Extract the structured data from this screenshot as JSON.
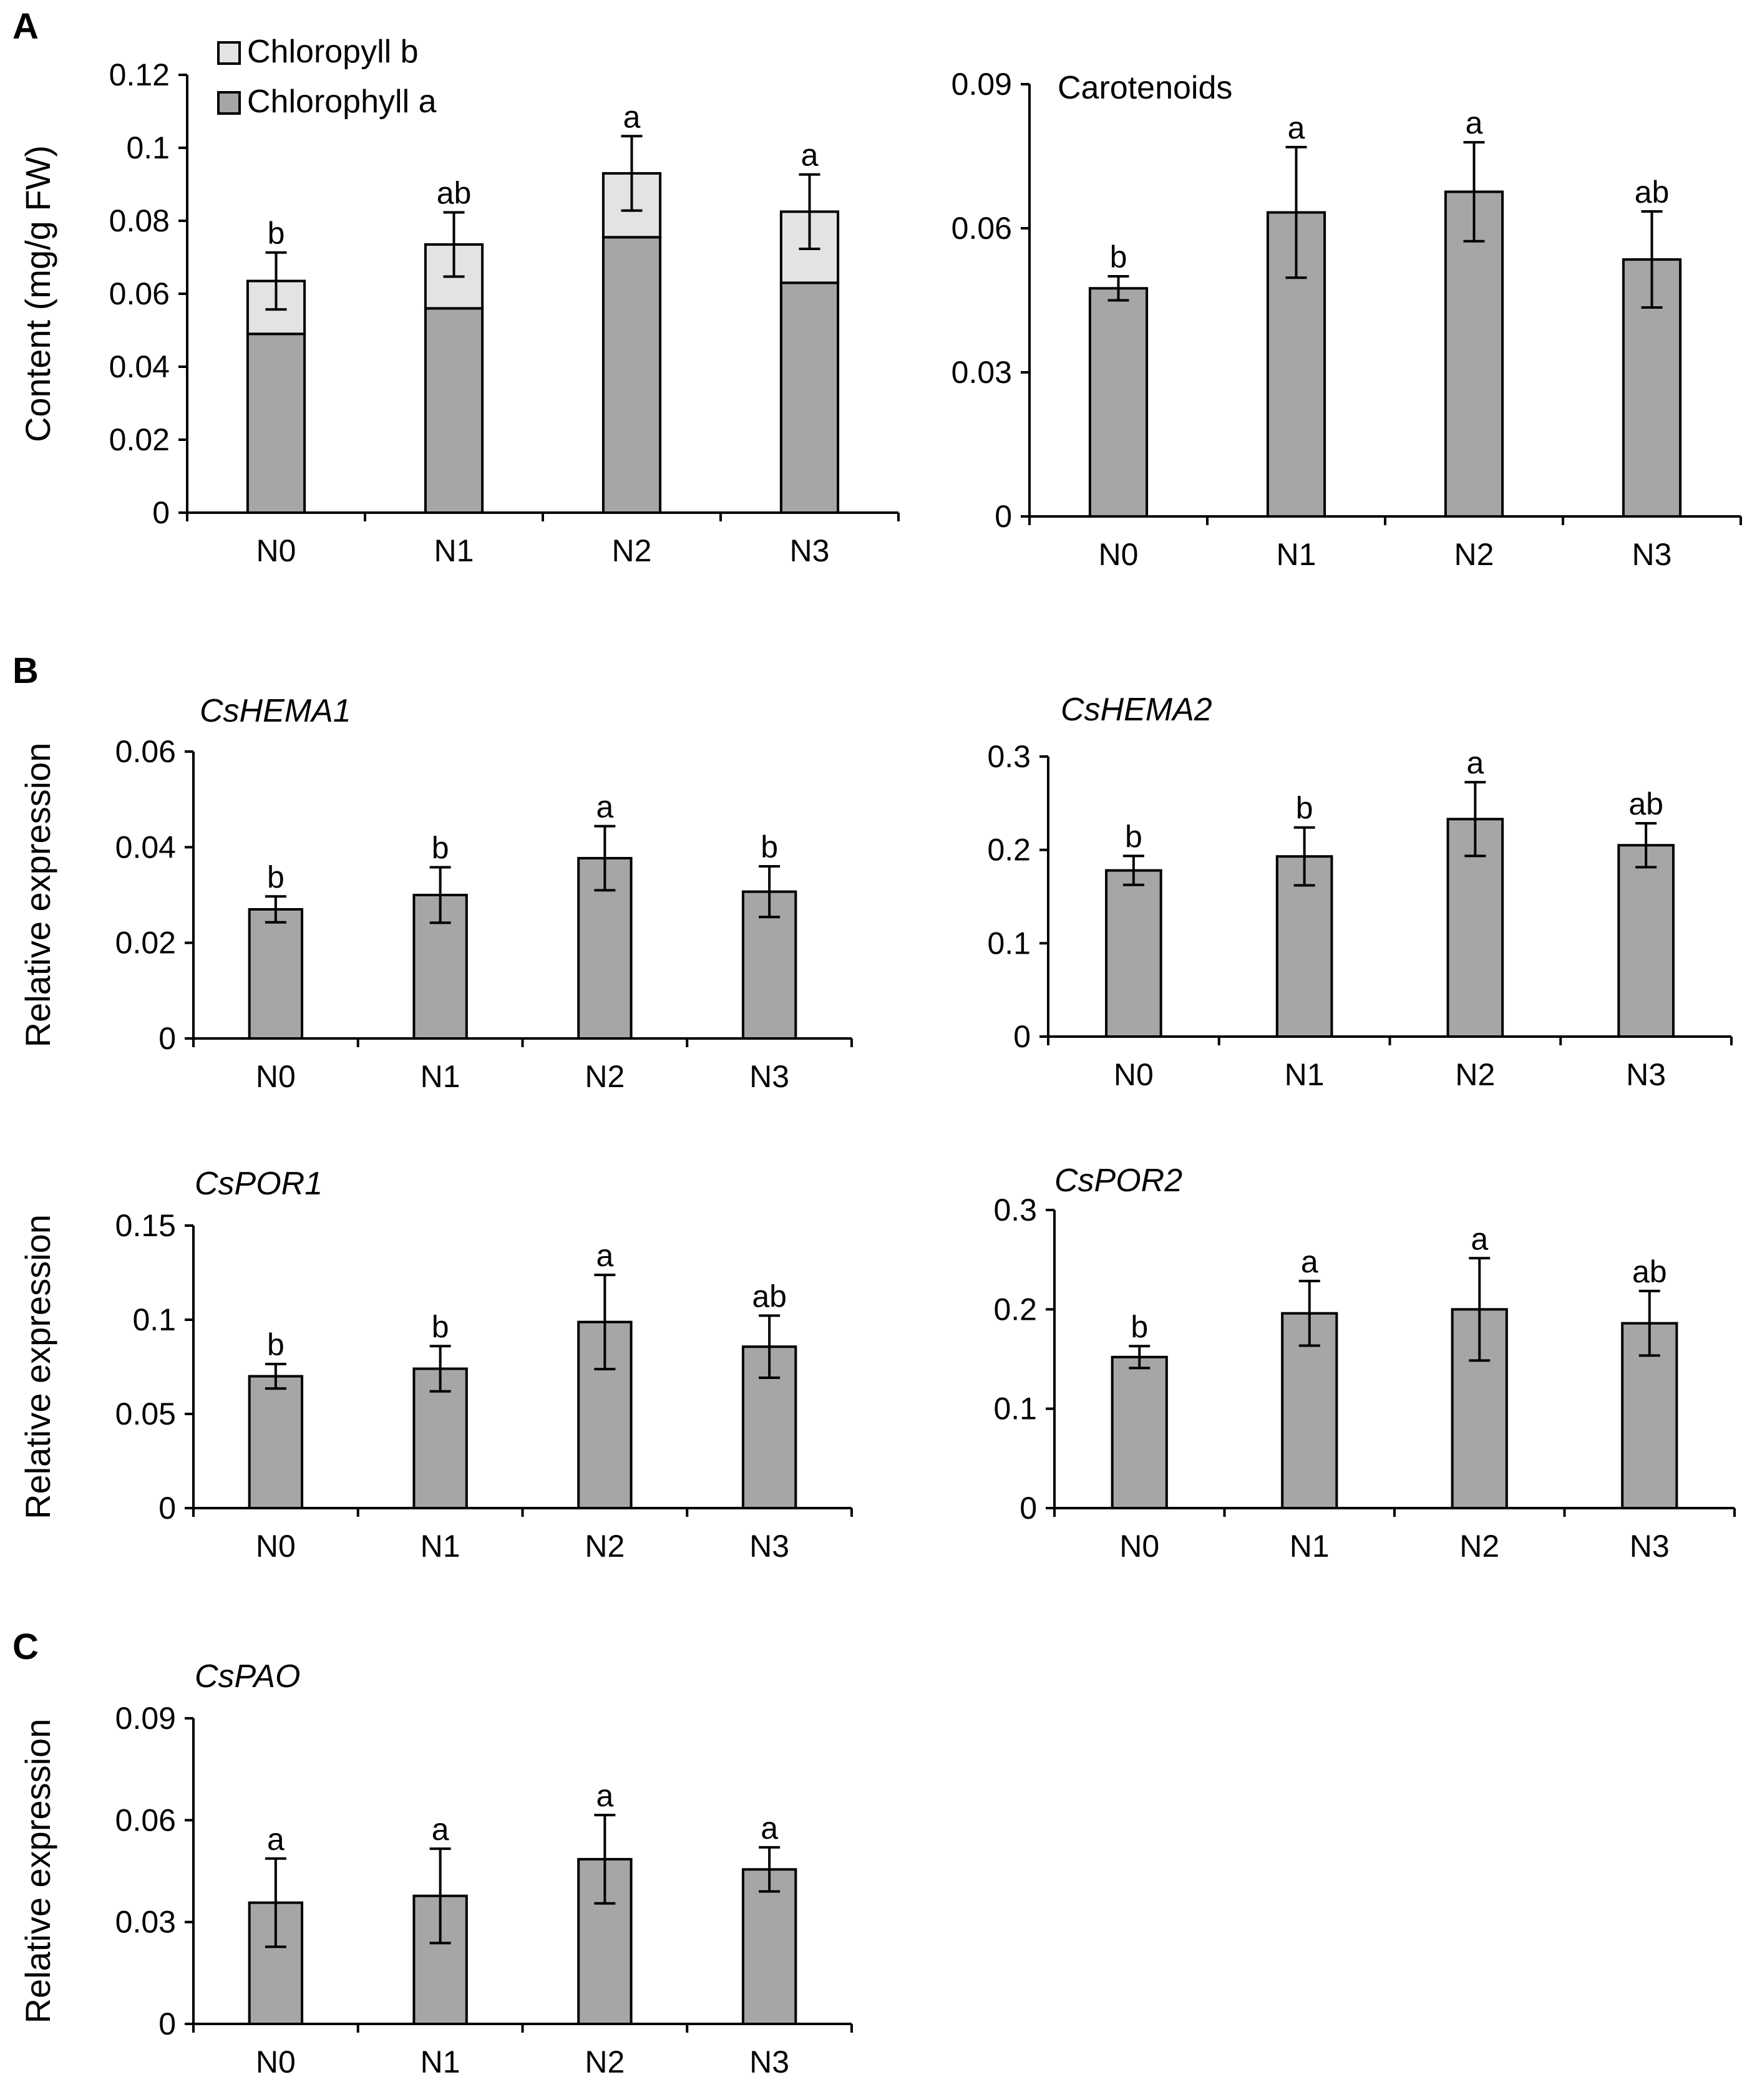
{
  "figure": {
    "panel_letters": [
      "A",
      "B",
      "C"
    ]
  },
  "colors": {
    "dark_bar": "#a6a6a6",
    "light_bar": "#e3e3e3",
    "axis": "#000000"
  },
  "chart_data": [
    {
      "id": "chloro",
      "type": "stacked-bar",
      "title": "",
      "title_italic": false,
      "ylabel": "Content (mg/g FW)",
      "xlabel": "",
      "categories": [
        "N0",
        "N1",
        "N2",
        "N3"
      ],
      "ylim": [
        0,
        0.12
      ],
      "yticks": [
        0,
        0.02,
        0.04,
        0.06,
        0.08,
        0.1,
        0.12
      ],
      "ytick_labels": [
        "0",
        "0.02",
        "0.04",
        "0.06",
        "0.08",
        "0.1",
        "0.12"
      ],
      "series": [
        {
          "name": "Chlorophyll a",
          "values": [
            0.049,
            0.056,
            0.0755,
            0.063
          ],
          "color": "#a6a6a6"
        },
        {
          "name": "Chloropyll b",
          "values": [
            0.0145,
            0.0175,
            0.0175,
            0.0195
          ],
          "color": "#e3e3e3"
        }
      ],
      "totals": [
        0.0635,
        0.0735,
        0.093,
        0.0825
      ],
      "errors": [
        0.0078,
        0.0088,
        0.0102,
        0.0102
      ],
      "significance": [
        "b",
        "ab",
        "a",
        "a"
      ],
      "legend": [
        {
          "label": "Chloropyll b",
          "color": "#e3e3e3"
        },
        {
          "label": "Chlorophyll a",
          "color": "#a6a6a6"
        }
      ],
      "legend_position": "top-left"
    },
    {
      "id": "carot",
      "type": "bar",
      "title": "Carotenoids",
      "title_italic": false,
      "ylabel": "",
      "xlabel": "",
      "categories": [
        "N0",
        "N1",
        "N2",
        "N3"
      ],
      "ylim": [
        0,
        0.09
      ],
      "yticks": [
        0,
        0.03,
        0.06,
        0.09
      ],
      "ytick_labels": [
        "0",
        "0.03",
        "0.06",
        "0.09"
      ],
      "values": [
        0.0475,
        0.0633,
        0.0676,
        0.0535
      ],
      "errors": [
        0.0025,
        0.0136,
        0.0103,
        0.01
      ],
      "significance": [
        "b",
        "a",
        "a",
        "ab"
      ]
    },
    {
      "id": "hema1",
      "type": "bar",
      "title": "CsHEMA1",
      "title_italic": true,
      "ylabel": "Relative expression",
      "xlabel": "",
      "categories": [
        "N0",
        "N1",
        "N2",
        "N3"
      ],
      "ylim": [
        0,
        0.06
      ],
      "yticks": [
        0,
        0.02,
        0.04,
        0.06
      ],
      "ytick_labels": [
        "0",
        "0.02",
        "0.04",
        "0.06"
      ],
      "values": [
        0.027,
        0.03,
        0.0377,
        0.0307
      ],
      "errors": [
        0.0027,
        0.0058,
        0.0067,
        0.0053
      ],
      "significance": [
        "b",
        "b",
        "a",
        "b"
      ]
    },
    {
      "id": "hema2",
      "type": "bar",
      "title": "CsHEMA2",
      "title_italic": true,
      "ylabel": "",
      "xlabel": "",
      "categories": [
        "N0",
        "N1",
        "N2",
        "N3"
      ],
      "ylim": [
        0,
        0.3
      ],
      "yticks": [
        0,
        0.1,
        0.2,
        0.3
      ],
      "ytick_labels": [
        "0",
        "0.1",
        "0.2",
        "0.3"
      ],
      "values": [
        0.178,
        0.193,
        0.233,
        0.205
      ],
      "errors": [
        0.0155,
        0.031,
        0.0395,
        0.0235
      ],
      "significance": [
        "b",
        "b",
        "a",
        "ab"
      ]
    },
    {
      "id": "por1",
      "type": "bar",
      "title": "CsPOR1",
      "title_italic": true,
      "ylabel": "Relative expression",
      "xlabel": "",
      "categories": [
        "N0",
        "N1",
        "N2",
        "N3"
      ],
      "ylim": [
        0,
        0.15
      ],
      "yticks": [
        0,
        0.05,
        0.1,
        0.15
      ],
      "ytick_labels": [
        "0",
        "0.05",
        "0.1",
        "0.15"
      ],
      "values": [
        0.07,
        0.074,
        0.0988,
        0.0857
      ],
      "errors": [
        0.0065,
        0.012,
        0.025,
        0.0165
      ],
      "significance": [
        "b",
        "b",
        "a",
        "ab"
      ]
    },
    {
      "id": "por2",
      "type": "bar",
      "title": "CsPOR2",
      "title_italic": true,
      "ylabel": "",
      "xlabel": "",
      "categories": [
        "N0",
        "N1",
        "N2",
        "N3"
      ],
      "ylim": [
        0,
        0.3
      ],
      "yticks": [
        0,
        0.1,
        0.2,
        0.3
      ],
      "ytick_labels": [
        "0",
        "0.1",
        "0.2",
        "0.3"
      ],
      "values": [
        0.152,
        0.196,
        0.2,
        0.186
      ],
      "errors": [
        0.011,
        0.0325,
        0.0515,
        0.0325
      ],
      "significance": [
        "b",
        "a",
        "a",
        "ab"
      ]
    },
    {
      "id": "pao",
      "type": "bar",
      "title": "CsPAO",
      "title_italic": true,
      "ylabel": "Relative expression",
      "xlabel": "",
      "categories": [
        "N0",
        "N1",
        "N2",
        "N3"
      ],
      "ylim": [
        0,
        0.09
      ],
      "yticks": [
        0,
        0.03,
        0.06,
        0.09
      ],
      "ytick_labels": [
        "0",
        "0.03",
        "0.06",
        "0.09"
      ],
      "values": [
        0.0357,
        0.0377,
        0.0485,
        0.0455
      ],
      "errors": [
        0.013,
        0.0139,
        0.013,
        0.0065
      ],
      "significance": [
        "a",
        "a",
        "a",
        "a"
      ]
    }
  ]
}
